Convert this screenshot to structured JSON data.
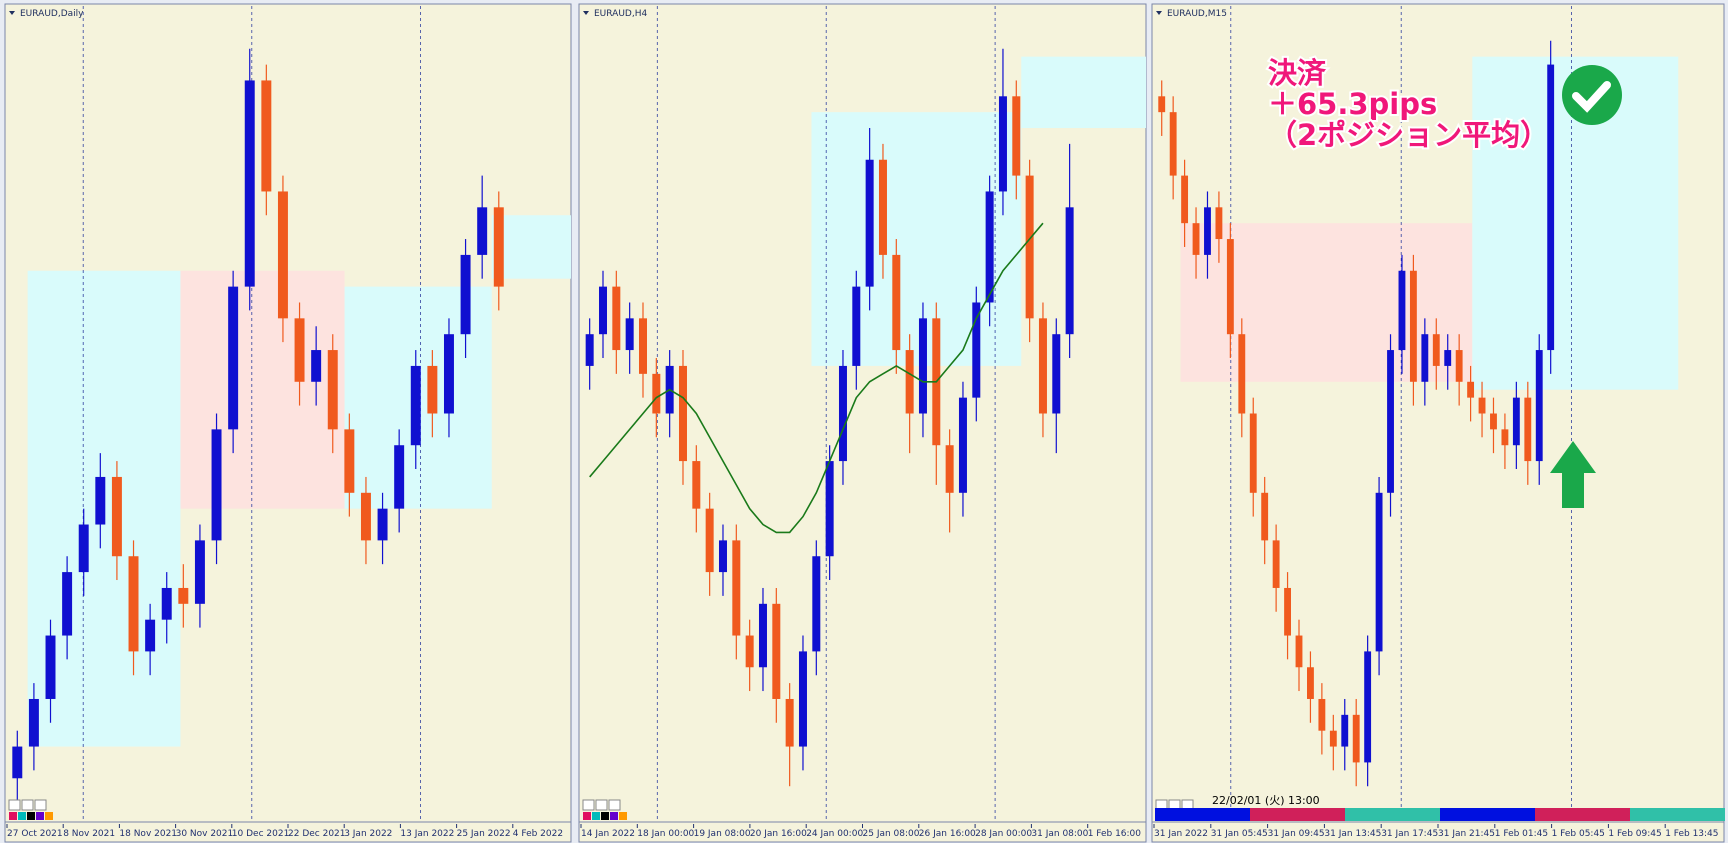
{
  "chart_data": [
    {
      "type": "candlestick",
      "title": "EURAUD,Daily",
      "up_color": "#1010d0",
      "down_color": "#f05a1e",
      "ylim": [
        0,
        100
      ],
      "x_labels": [
        "27 Oct 2021",
        "8 Nov 2021",
        "18 Nov 2021",
        "30 Nov 2021",
        "10 Dec 2021",
        "22 Dec 2021",
        "3 Jan 2022",
        "13 Jan 2022",
        "25 Jan 2022",
        "4 Feb 2022"
      ],
      "candles": [
        [
          4,
          10,
          1,
          8
        ],
        [
          8,
          16,
          5,
          14
        ],
        [
          14,
          24,
          11,
          22
        ],
        [
          22,
          32,
          19,
          30
        ],
        [
          30,
          38,
          27,
          36
        ],
        [
          36,
          45,
          33,
          42
        ],
        [
          42,
          44,
          29,
          32
        ],
        [
          32,
          34,
          17,
          20
        ],
        [
          20,
          26,
          17,
          24
        ],
        [
          24,
          30,
          21,
          28
        ],
        [
          28,
          31,
          23,
          26
        ],
        [
          26,
          36,
          23,
          34
        ],
        [
          34,
          50,
          31,
          48
        ],
        [
          48,
          68,
          45,
          66
        ],
        [
          66,
          96,
          63,
          92
        ],
        [
          92,
          94,
          75,
          78
        ],
        [
          78,
          80,
          59,
          62
        ],
        [
          62,
          64,
          51,
          54
        ],
        [
          54,
          61,
          51,
          58
        ],
        [
          58,
          60,
          45,
          48
        ],
        [
          48,
          50,
          37,
          40
        ],
        [
          40,
          42,
          31,
          34
        ],
        [
          34,
          40,
          31,
          38
        ],
        [
          38,
          48,
          35,
          46
        ],
        [
          46,
          58,
          43,
          56
        ],
        [
          56,
          58,
          47,
          50
        ],
        [
          50,
          62,
          47,
          60
        ],
        [
          60,
          72,
          57,
          70
        ],
        [
          70,
          80,
          67,
          76
        ],
        [
          76,
          78,
          63,
          66
        ]
      ]
    },
    {
      "type": "candlestick",
      "title": "EURAUD,H4",
      "up_color": "#1010d0",
      "down_color": "#f05a1e",
      "ylim": [
        0,
        100
      ],
      "ma_color": "#1a7a1a",
      "x_labels": [
        "14 Jan 2022",
        "18 Jan 00:00",
        "19 Jan 08:00",
        "20 Jan 16:00",
        "24 Jan 00:00",
        "25 Jan 08:00",
        "26 Jan 16:00",
        "28 Jan 00:00",
        "31 Jan 08:00",
        "1 Feb 16:00"
      ],
      "candles": [
        [
          56,
          62,
          53,
          60
        ],
        [
          60,
          68,
          57,
          66
        ],
        [
          66,
          68,
          55,
          58
        ],
        [
          58,
          64,
          55,
          62
        ],
        [
          62,
          64,
          52,
          55
        ],
        [
          55,
          57,
          47,
          50
        ],
        [
          50,
          58,
          47,
          56
        ],
        [
          56,
          58,
          41,
          44
        ],
        [
          44,
          46,
          35,
          38
        ],
        [
          38,
          40,
          27,
          30
        ],
        [
          30,
          36,
          27,
          34
        ],
        [
          34,
          36,
          19,
          22
        ],
        [
          22,
          24,
          15,
          18
        ],
        [
          18,
          28,
          15,
          26
        ],
        [
          26,
          28,
          11,
          14
        ],
        [
          14,
          16,
          3,
          8
        ],
        [
          8,
          22,
          5,
          20
        ],
        [
          20,
          34,
          17,
          32
        ],
        [
          32,
          46,
          29,
          44
        ],
        [
          44,
          58,
          41,
          56
        ],
        [
          56,
          68,
          53,
          66
        ],
        [
          66,
          86,
          63,
          82
        ],
        [
          82,
          84,
          67,
          70
        ],
        [
          70,
          72,
          55,
          58
        ],
        [
          58,
          60,
          45,
          50
        ],
        [
          50,
          64,
          47,
          62
        ],
        [
          62,
          64,
          41,
          46
        ],
        [
          46,
          48,
          35,
          40
        ],
        [
          40,
          54,
          37,
          52
        ],
        [
          52,
          66,
          49,
          64
        ],
        [
          64,
          80,
          61,
          78
        ],
        [
          78,
          96,
          75,
          90
        ],
        [
          90,
          92,
          77,
          80
        ],
        [
          80,
          82,
          59,
          62
        ],
        [
          62,
          64,
          47,
          50
        ],
        [
          50,
          62,
          45,
          60
        ],
        [
          60,
          84,
          57,
          76
        ]
      ],
      "ma": [
        42,
        44,
        46,
        48,
        50,
        52,
        53,
        52,
        50,
        47,
        44,
        41,
        38,
        36,
        35,
        35,
        37,
        40,
        44,
        48,
        52,
        54,
        55,
        56,
        55,
        54,
        54,
        56,
        58,
        62,
        65,
        68,
        70,
        72,
        74
      ]
    },
    {
      "type": "candlestick",
      "title": "EURAUD,M15",
      "up_color": "#1010d0",
      "down_color": "#f05a1e",
      "ylim": [
        0,
        100
      ],
      "x_labels": [
        "31 Jan 2022",
        "31 Jan 05:45",
        "31 Jan 09:45",
        "31 Jan 13:45",
        "31 Jan 17:45",
        "31 Jan 21:45",
        "1 Feb 01:45",
        "1 Feb 05:45",
        "1 Feb 09:45",
        "1 Feb 13:45"
      ],
      "candles": [
        [
          90,
          92,
          85,
          88
        ],
        [
          88,
          90,
          77,
          80
        ],
        [
          80,
          82,
          71,
          74
        ],
        [
          74,
          76,
          67,
          70
        ],
        [
          70,
          78,
          67,
          76
        ],
        [
          76,
          78,
          69,
          72
        ],
        [
          72,
          74,
          57,
          60
        ],
        [
          60,
          62,
          47,
          50
        ],
        [
          50,
          52,
          37,
          40
        ],
        [
          40,
          42,
          31,
          34
        ],
        [
          34,
          36,
          25,
          28
        ],
        [
          28,
          30,
          19,
          22
        ],
        [
          22,
          24,
          15,
          18
        ],
        [
          18,
          20,
          11,
          14
        ],
        [
          14,
          16,
          7,
          10
        ],
        [
          10,
          12,
          5,
          8
        ],
        [
          8,
          14,
          5,
          12
        ],
        [
          12,
          14,
          3,
          6
        ],
        [
          6,
          22,
          3,
          20
        ],
        [
          20,
          42,
          17,
          40
        ],
        [
          40,
          60,
          37,
          58
        ],
        [
          58,
          70,
          55,
          68
        ],
        [
          68,
          70,
          51,
          54
        ],
        [
          54,
          62,
          51,
          60
        ],
        [
          60,
          62,
          53,
          56
        ],
        [
          56,
          60,
          53,
          58
        ],
        [
          58,
          60,
          51,
          54
        ],
        [
          54,
          56,
          49,
          52
        ],
        [
          52,
          54,
          47,
          50
        ],
        [
          50,
          52,
          45,
          48
        ],
        [
          48,
          50,
          43,
          46
        ],
        [
          46,
          54,
          43,
          52
        ],
        [
          52,
          54,
          41,
          44
        ],
        [
          44,
          60,
          41,
          58
        ],
        [
          58,
          97,
          55,
          94
        ]
      ],
      "annotation": [
        "決済",
        "＋65.3pips",
        "（2ポジション平均）"
      ],
      "timestamp": "22/02/01 (火) 13:00"
    }
  ]
}
